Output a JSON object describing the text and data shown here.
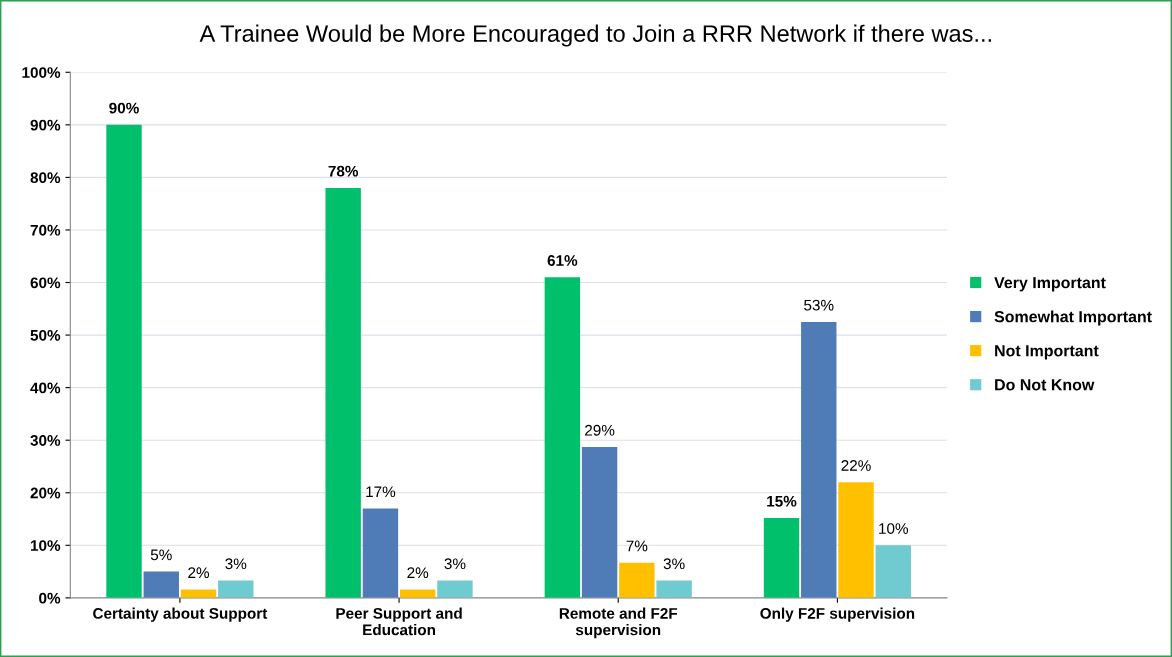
{
  "chart_data": {
    "type": "bar",
    "title": "A Trainee Would be More Encouraged to Join a RRR Network if there was...",
    "categories": [
      "Certainty about Support",
      "Peer Support and\nEducation",
      "Remote and F2F\nsupervision",
      "Only F2F supervision"
    ],
    "series": [
      {
        "name": "Very Important",
        "color": "#00c06b",
        "values": [
          90,
          78,
          61,
          15.2
        ],
        "value_labels": [
          "90%",
          "78%",
          "61%",
          "15%"
        ]
      },
      {
        "name": "Somewhat Important",
        "color": "#4f7bb7",
        "values": [
          5,
          17,
          28.7,
          52.5
        ],
        "value_labels": [
          "5%",
          "17%",
          "29%",
          "53%"
        ]
      },
      {
        "name": "Not Important",
        "color": "#ffc000",
        "values": [
          1.6,
          1.6,
          6.7,
          22
        ],
        "value_labels": [
          "2%",
          "2%",
          "7%",
          "22%"
        ]
      },
      {
        "name": "Do Not Know",
        "color": "#6fcbcf",
        "values": [
          3.3,
          3.3,
          3.3,
          10
        ],
        "value_labels": [
          "3%",
          "3%",
          "3%",
          "10%"
        ]
      }
    ],
    "ylim": [
      0,
      100
    ],
    "yticks": [
      {
        "value": 0,
        "label": "0%"
      },
      {
        "value": 10,
        "label": "10%"
      },
      {
        "value": 20,
        "label": "20%"
      },
      {
        "value": 30,
        "label": "30%"
      },
      {
        "value": 40,
        "label": "40%"
      },
      {
        "value": 50,
        "label": "50%"
      },
      {
        "value": 60,
        "label": "60%"
      },
      {
        "value": 70,
        "label": "70%"
      },
      {
        "value": 80,
        "label": "80%"
      },
      {
        "value": 90,
        "label": "90%"
      },
      {
        "value": 100,
        "label": "100%"
      }
    ],
    "grid": "y",
    "legend": "right"
  }
}
